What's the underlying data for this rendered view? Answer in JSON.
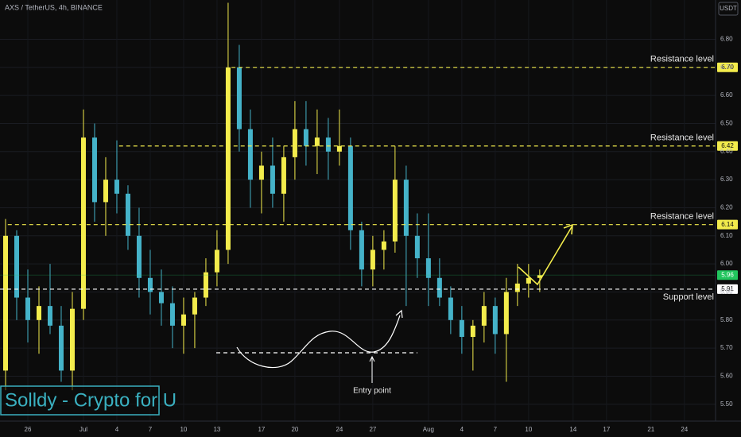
{
  "chart_data": {
    "type": "candlestick",
    "title": "AXS / TetherUS, 4h, BINANCE",
    "currency": "USDT",
    "watermark": "Solldy - Crypto for U",
    "annotation": "Entry point",
    "up_color": "#f3ec4c",
    "down_color": "#45b3c9",
    "xlim": [
      -2.5,
      61.8
    ],
    "ylim": [
      5.44,
      6.94
    ],
    "grid": true,
    "xticks": [
      {
        "value": 0,
        "label": "26"
      },
      {
        "value": 5,
        "label": "Jul"
      },
      {
        "value": 8,
        "label": "4"
      },
      {
        "value": 11,
        "label": "7"
      },
      {
        "value": 14,
        "label": "10"
      },
      {
        "value": 17,
        "label": "13"
      },
      {
        "value": 21,
        "label": "17"
      },
      {
        "value": 24,
        "label": "20"
      },
      {
        "value": 28,
        "label": "24"
      },
      {
        "value": 31,
        "label": "27"
      },
      {
        "value": 36,
        "label": "Aug"
      },
      {
        "value": 39,
        "label": "4"
      },
      {
        "value": 42,
        "label": "7"
      },
      {
        "value": 45,
        "label": "10"
      },
      {
        "value": 49,
        "label": "14"
      },
      {
        "value": 52,
        "label": "17"
      },
      {
        "value": 56,
        "label": "21"
      },
      {
        "value": 59,
        "label": "24"
      }
    ],
    "yticks": [
      {
        "value": 5.5,
        "label": "5.50"
      },
      {
        "value": 5.6,
        "label": "5.60"
      },
      {
        "value": 5.7,
        "label": "5.70"
      },
      {
        "value": 5.8,
        "label": "5.80"
      },
      {
        "value": 5.9,
        "label": "5.90"
      },
      {
        "value": 6.0,
        "label": "6.00"
      },
      {
        "value": 6.1,
        "label": "6.10"
      },
      {
        "value": 6.2,
        "label": "6.20"
      },
      {
        "value": 6.3,
        "label": "6.30"
      },
      {
        "value": 6.4,
        "label": "6.40"
      },
      {
        "value": 6.5,
        "label": "6.50"
      },
      {
        "value": 6.6,
        "label": "6.60"
      },
      {
        "value": 6.7,
        "label": "6.70"
      },
      {
        "value": 6.8,
        "label": "6.80"
      }
    ],
    "x": [
      -2,
      -1,
      0,
      1,
      2,
      3,
      4,
      5,
      6,
      7,
      8,
      9,
      10,
      11,
      12,
      13,
      14,
      15,
      16,
      17,
      18,
      19,
      20,
      21,
      22,
      23,
      24,
      25,
      26,
      27,
      28,
      29,
      30,
      31,
      32,
      33,
      34,
      35,
      36,
      37,
      38,
      39,
      40,
      41,
      42,
      43,
      44,
      45,
      46
    ],
    "open": [
      5.62,
      6.1,
      5.88,
      5.8,
      5.85,
      5.78,
      5.62,
      5.84,
      6.45,
      6.22,
      6.3,
      6.25,
      6.1,
      5.95,
      5.9,
      5.86,
      5.78,
      5.82,
      5.88,
      5.97,
      6.05,
      6.7,
      6.48,
      6.3,
      6.35,
      6.25,
      6.38,
      6.48,
      6.42,
      6.45,
      6.4,
      6.42,
      6.12,
      5.98,
      6.05,
      6.08,
      6.3,
      6.1,
      6.02,
      5.95,
      5.88,
      5.8,
      5.74,
      5.78,
      5.85,
      5.75,
      5.9,
      5.93,
      5.95
    ],
    "high": [
      6.16,
      6.12,
      5.98,
      5.92,
      6.0,
      5.85,
      5.9,
      6.55,
      6.5,
      6.38,
      6.44,
      6.28,
      6.2,
      6.05,
      5.98,
      5.92,
      5.88,
      5.9,
      6.02,
      6.12,
      6.93,
      6.78,
      6.55,
      6.4,
      6.45,
      6.42,
      6.58,
      6.58,
      6.55,
      6.52,
      6.55,
      6.45,
      6.15,
      6.1,
      6.12,
      6.42,
      6.35,
      6.18,
      6.18,
      6.02,
      5.92,
      5.85,
      5.8,
      5.9,
      5.88,
      5.95,
      6.0,
      6.0,
      5.98
    ],
    "low": [
      5.55,
      5.8,
      5.72,
      5.68,
      5.75,
      5.58,
      5.55,
      5.8,
      6.15,
      6.1,
      6.18,
      6.05,
      5.88,
      5.82,
      5.78,
      5.7,
      5.68,
      5.7,
      5.85,
      5.92,
      6.0,
      6.4,
      6.2,
      6.18,
      6.2,
      6.15,
      6.3,
      6.35,
      6.32,
      6.3,
      6.35,
      6.05,
      5.92,
      5.92,
      5.98,
      6.04,
      5.85,
      5.95,
      5.85,
      5.85,
      5.75,
      5.68,
      5.62,
      5.72,
      5.68,
      5.58,
      5.85,
      5.88,
      5.9
    ],
    "close": [
      6.1,
      5.88,
      5.8,
      5.85,
      5.78,
      5.62,
      5.84,
      6.45,
      6.22,
      6.3,
      6.25,
      6.1,
      5.95,
      5.9,
      5.86,
      5.78,
      5.82,
      5.88,
      5.97,
      6.05,
      6.7,
      6.48,
      6.3,
      6.35,
      6.25,
      6.38,
      6.48,
      6.42,
      6.45,
      6.4,
      6.42,
      6.12,
      5.98,
      6.05,
      6.08,
      6.3,
      6.1,
      6.02,
      5.95,
      5.88,
      5.8,
      5.74,
      5.78,
      5.85,
      5.75,
      5.9,
      5.93,
      5.95,
      5.96
    ],
    "levels": [
      {
        "name": "Resistance level",
        "value": 6.7,
        "value_label": "6.70",
        "start": 18.3,
        "color": "#f3ec4c"
      },
      {
        "name": "Resistance level",
        "value": 6.42,
        "value_label": "6.42",
        "start": 8.2,
        "color": "#f3ec4c"
      },
      {
        "name": "Resistance level",
        "value": 6.14,
        "value_label": "6.14",
        "start": -1.8,
        "color": "#f3ec4c"
      },
      {
        "name": "Support level",
        "value": 5.91,
        "value_label": "5.91",
        "start": -2.5,
        "color": "#ffffff"
      }
    ],
    "last_price": 5.96,
    "last_price_label": "5.96",
    "last_price_color": "#22c55e"
  }
}
